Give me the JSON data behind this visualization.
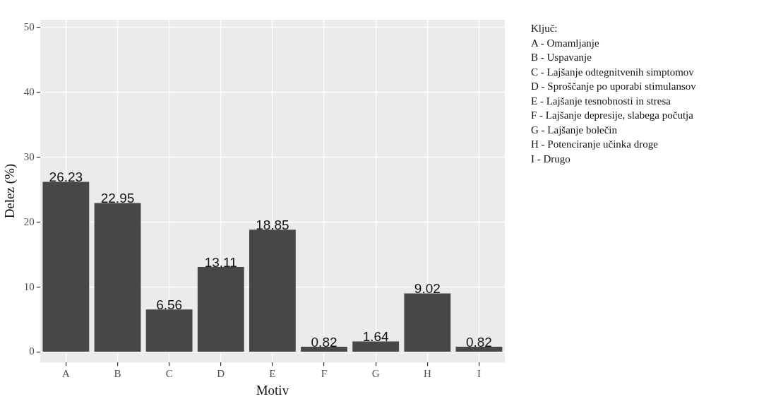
{
  "chart_data": {
    "type": "bar",
    "xlabel": "Motiv",
    "ylabel": "Delez (%)",
    "categories": [
      "A",
      "B",
      "C",
      "D",
      "E",
      "F",
      "G",
      "H",
      "I"
    ],
    "values": [
      26.23,
      22.95,
      6.56,
      13.11,
      18.85,
      0.82,
      1.64,
      9.02,
      0.82
    ],
    "color": "#474747",
    "ylim": [
      -1.6,
      51.2
    ],
    "yticks": [
      0,
      10,
      20,
      30,
      40,
      50
    ],
    "grid": true,
    "data_labels": true,
    "legend": false,
    "annotations": [
      "Ključ:",
      "A - Omamljanje",
      "B - Uspavanje",
      "C - Lajšanje odtegnitvenih simptomov",
      "D - Sproščanje po uporabi stimulansov",
      "E - Lajšanje tesnobnosti in stresa",
      "F - Lajšanje depresije, slabega počutja",
      "G - Lajšanje bolečin",
      "H - Potenciranje učinka droge",
      "I - Drugo"
    ]
  }
}
